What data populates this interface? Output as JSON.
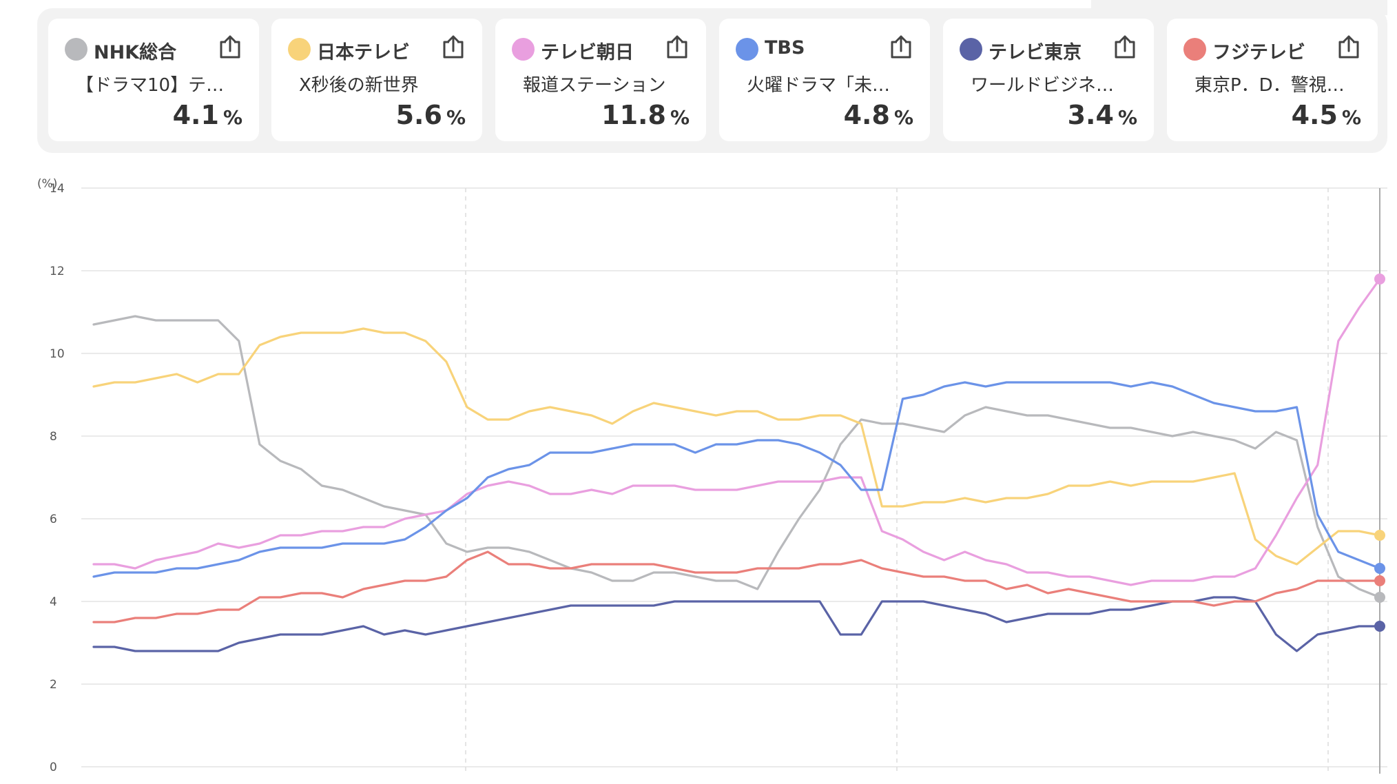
{
  "channels": [
    {
      "name": "NHK総合",
      "program": "【ドラマ10】テ…",
      "rating": "4.1",
      "unit": "%",
      "color": "#b8b9bc"
    },
    {
      "name": "日本テレビ",
      "program": "X秒後の新世界",
      "rating": "5.6",
      "unit": "%",
      "color": "#f8d37a"
    },
    {
      "name": "テレビ朝日",
      "program": "報道ステーション",
      "rating": "11.8",
      "unit": "%",
      "color": "#e99fdf"
    },
    {
      "name": "TBS",
      "program": "火曜ドラマ「未…",
      "rating": "4.8",
      "unit": "%",
      "color": "#6b93e8"
    },
    {
      "name": "テレビ東京",
      "program": "ワールドビジネ…",
      "rating": "3.4",
      "unit": "%",
      "color": "#5a63a6"
    },
    {
      "name": "フジテレビ",
      "program": "東京P．D．警視…",
      "rating": "4.5",
      "unit": "%",
      "color": "#ea7f7a"
    }
  ],
  "chart_data": {
    "type": "line",
    "ylabel": "(%)",
    "ylim": [
      0,
      14
    ],
    "yticks": [
      "0",
      "2",
      "4",
      "6",
      "8",
      "10",
      "12",
      "14"
    ],
    "grid": true,
    "x": [
      0,
      6,
      12,
      18,
      24,
      30,
      36,
      42,
      48,
      54,
      60,
      66,
      72,
      78,
      84,
      90,
      96,
      102,
      108,
      114,
      120,
      126,
      132,
      138,
      144,
      150,
      156,
      162,
      168,
      174,
      180,
      186,
      192,
      198,
      204,
      210,
      216,
      222,
      228,
      234,
      240,
      246,
      252,
      258,
      264,
      270,
      276,
      282,
      288,
      294,
      300,
      306,
      312,
      318,
      324,
      330,
      336,
      342,
      348,
      354,
      360,
      366,
      372
    ],
    "series": [
      {
        "name": "NHK総合",
        "color": "#b8b9bc",
        "values": [
          10.7,
          10.8,
          10.9,
          10.8,
          10.8,
          10.8,
          10.8,
          10.3,
          7.8,
          7.4,
          7.2,
          6.8,
          6.7,
          6.5,
          6.3,
          6.2,
          6.1,
          5.4,
          5.2,
          5.3,
          5.3,
          5.2,
          5.0,
          4.8,
          4.7,
          4.5,
          4.5,
          4.7,
          4.7,
          4.6,
          4.5,
          4.5,
          4.3,
          5.2,
          6.0,
          6.7,
          7.8,
          8.4,
          8.3,
          8.3,
          8.2,
          8.1,
          8.5,
          8.7,
          8.6,
          8.5,
          8.5,
          8.4,
          8.3,
          8.2,
          8.2,
          8.1,
          8.0,
          8.1,
          8.0,
          7.9,
          7.7,
          8.1,
          7.9,
          5.8,
          4.6,
          4.3,
          4.1
        ]
      },
      {
        "name": "日本テレビ",
        "color": "#f8d37a",
        "values": [
          9.2,
          9.3,
          9.3,
          9.4,
          9.5,
          9.3,
          9.5,
          9.5,
          10.2,
          10.4,
          10.5,
          10.5,
          10.5,
          10.6,
          10.5,
          10.5,
          10.3,
          9.8,
          8.7,
          8.4,
          8.4,
          8.6,
          8.7,
          8.6,
          8.5,
          8.3,
          8.6,
          8.8,
          8.7,
          8.6,
          8.5,
          8.6,
          8.6,
          8.4,
          8.4,
          8.5,
          8.5,
          8.3,
          6.3,
          6.3,
          6.4,
          6.4,
          6.5,
          6.4,
          6.5,
          6.5,
          6.6,
          6.8,
          6.8,
          6.9,
          6.8,
          6.9,
          6.9,
          6.9,
          7.0,
          7.1,
          5.5,
          5.1,
          4.9,
          5.3,
          5.7,
          5.7,
          5.6
        ]
      },
      {
        "name": "テレビ朝日",
        "color": "#e99fdf",
        "values": [
          4.9,
          4.9,
          4.8,
          5.0,
          5.1,
          5.2,
          5.4,
          5.3,
          5.4,
          5.6,
          5.6,
          5.7,
          5.7,
          5.8,
          5.8,
          6.0,
          6.1,
          6.2,
          6.6,
          6.8,
          6.9,
          6.8,
          6.6,
          6.6,
          6.7,
          6.6,
          6.8,
          6.8,
          6.8,
          6.7,
          6.7,
          6.7,
          6.8,
          6.9,
          6.9,
          6.9,
          7.0,
          7.0,
          5.7,
          5.5,
          5.2,
          5.0,
          5.2,
          5.0,
          4.9,
          4.7,
          4.7,
          4.6,
          4.6,
          4.5,
          4.4,
          4.5,
          4.5,
          4.5,
          4.6,
          4.6,
          4.8,
          5.6,
          6.5,
          7.3,
          10.3,
          11.1,
          11.8
        ]
      },
      {
        "name": "TBS",
        "color": "#6b93e8",
        "values": [
          4.6,
          4.7,
          4.7,
          4.7,
          4.8,
          4.8,
          4.9,
          5.0,
          5.2,
          5.3,
          5.3,
          5.3,
          5.4,
          5.4,
          5.4,
          5.5,
          5.8,
          6.2,
          6.5,
          7.0,
          7.2,
          7.3,
          7.6,
          7.6,
          7.6,
          7.7,
          7.8,
          7.8,
          7.8,
          7.6,
          7.8,
          7.8,
          7.9,
          7.9,
          7.8,
          7.6,
          7.3,
          6.7,
          6.7,
          8.9,
          9.0,
          9.2,
          9.3,
          9.2,
          9.3,
          9.3,
          9.3,
          9.3,
          9.3,
          9.3,
          9.2,
          9.3,
          9.2,
          9.0,
          8.8,
          8.7,
          8.6,
          8.6,
          8.7,
          6.1,
          5.2,
          5.0,
          4.8
        ]
      },
      {
        "name": "テレビ東京",
        "color": "#5a63a6",
        "values": [
          2.9,
          2.9,
          2.8,
          2.8,
          2.8,
          2.8,
          2.8,
          3.0,
          3.1,
          3.2,
          3.2,
          3.2,
          3.3,
          3.4,
          3.2,
          3.3,
          3.2,
          3.3,
          3.4,
          3.5,
          3.6,
          3.7,
          3.8,
          3.9,
          3.9,
          3.9,
          3.9,
          3.9,
          4.0,
          4.0,
          4.0,
          4.0,
          4.0,
          4.0,
          4.0,
          4.0,
          3.2,
          3.2,
          4.0,
          4.0,
          4.0,
          3.9,
          3.8,
          3.7,
          3.5,
          3.6,
          3.7,
          3.7,
          3.7,
          3.8,
          3.8,
          3.9,
          4.0,
          4.0,
          4.1,
          4.1,
          4.0,
          3.2,
          2.8,
          3.2,
          3.3,
          3.4,
          3.4
        ]
      },
      {
        "name": "フジテレビ",
        "color": "#ea7f7a",
        "values": [
          3.5,
          3.5,
          3.6,
          3.6,
          3.7,
          3.7,
          3.8,
          3.8,
          4.1,
          4.1,
          4.2,
          4.2,
          4.1,
          4.3,
          4.4,
          4.5,
          4.5,
          4.6,
          5.0,
          5.2,
          4.9,
          4.9,
          4.8,
          4.8,
          4.9,
          4.9,
          4.9,
          4.9,
          4.8,
          4.7,
          4.7,
          4.7,
          4.8,
          4.8,
          4.8,
          4.9,
          4.9,
          5.0,
          4.8,
          4.7,
          4.6,
          4.6,
          4.5,
          4.5,
          4.3,
          4.4,
          4.2,
          4.3,
          4.2,
          4.1,
          4.0,
          4.0,
          4.0,
          4.0,
          3.9,
          4.0,
          4.0,
          4.2,
          4.3,
          4.5,
          4.5,
          4.5,
          4.5
        ]
      }
    ]
  }
}
